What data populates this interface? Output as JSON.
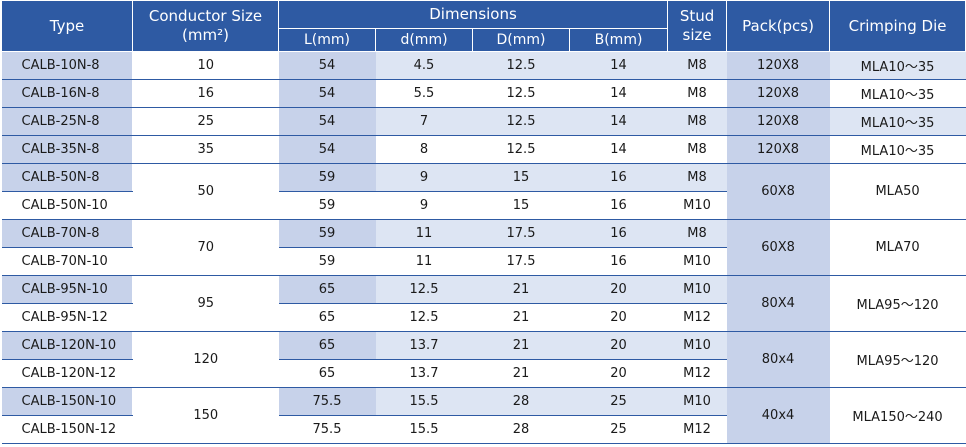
{
  "headers": {
    "type": "Type",
    "conductor_size": "Conductor Size",
    "conductor_unit": "(mm²)",
    "dimensions": "Dimensions",
    "L": "L(mm)",
    "d": "d(mm)",
    "D": "D(mm)",
    "B": "B(mm)",
    "stud_1": "Stud",
    "stud_2": "size",
    "pack": "Pack(pcs)",
    "die": "Crimping Die"
  },
  "rows": [
    {
      "type": "CALB-10N-8",
      "cs": "10",
      "L": "54",
      "d": "4.5",
      "D": "12.5",
      "B": "14",
      "stud": "M8",
      "pack": "120X8",
      "die": "MLA10～35"
    },
    {
      "type": "CALB-16N-8",
      "cs": "16",
      "L": "54",
      "d": "5.5",
      "D": "12.5",
      "B": "14",
      "stud": "M8",
      "pack": "120X8",
      "die": "MLA10～35"
    },
    {
      "type": "CALB-25N-8",
      "cs": "25",
      "L": "54",
      "d": "7",
      "D": "12.5",
      "B": "14",
      "stud": "M8",
      "pack": "120X8",
      "die": "MLA10～35"
    },
    {
      "type": "CALB-35N-8",
      "cs": "35",
      "L": "54",
      "d": "8",
      "D": "12.5",
      "B": "14",
      "stud": "M8",
      "pack": "120X8",
      "die": "MLA10～35"
    }
  ],
  "groups": [
    {
      "cs": "50",
      "pack": "60X8",
      "die": "MLA50",
      "rows": [
        {
          "type": "CALB-50N-8",
          "L": "59",
          "d": "9",
          "D": "15",
          "B": "16",
          "stud": "M8"
        },
        {
          "type": "CALB-50N-10",
          "L": "59",
          "d": "9",
          "D": "15",
          "B": "16",
          "stud": "M10"
        }
      ]
    },
    {
      "cs": "70",
      "pack": "60X8",
      "die": "MLA70",
      "rows": [
        {
          "type": "CALB-70N-8",
          "L": "59",
          "d": "11",
          "D": "17.5",
          "B": "16",
          "stud": "M8"
        },
        {
          "type": "CALB-70N-10",
          "L": "59",
          "d": "11",
          "D": "17.5",
          "B": "16",
          "stud": "M10"
        }
      ]
    },
    {
      "cs": "95",
      "pack": "80X4",
      "die": "MLA95～120",
      "rows": [
        {
          "type": "CALB-95N-10",
          "L": "65",
          "d": "12.5",
          "D": "21",
          "B": "20",
          "stud": "M10"
        },
        {
          "type": "CALB-95N-12",
          "L": "65",
          "d": "12.5",
          "D": "21",
          "B": "20",
          "stud": "M12"
        }
      ]
    },
    {
      "cs": "120",
      "pack": "80x4",
      "die": "MLA95～120",
      "rows": [
        {
          "type": "CALB-120N-10",
          "L": "65",
          "d": "13.7",
          "D": "21",
          "B": "20",
          "stud": "M10"
        },
        {
          "type": "CALB-120N-12",
          "L": "65",
          "d": "13.7",
          "D": "21",
          "B": "20",
          "stud": "M12"
        }
      ]
    },
    {
      "cs": "150",
      "pack": "40x4",
      "die": "MLA150～240",
      "rows": [
        {
          "type": "CALB-150N-10",
          "L": "75.5",
          "d": "15.5",
          "D": "28",
          "B": "25",
          "stud": "M10"
        },
        {
          "type": "CALB-150N-12",
          "L": "75.5",
          "d": "15.5",
          "D": "28",
          "B": "25",
          "stud": "M12"
        }
      ]
    }
  ]
}
